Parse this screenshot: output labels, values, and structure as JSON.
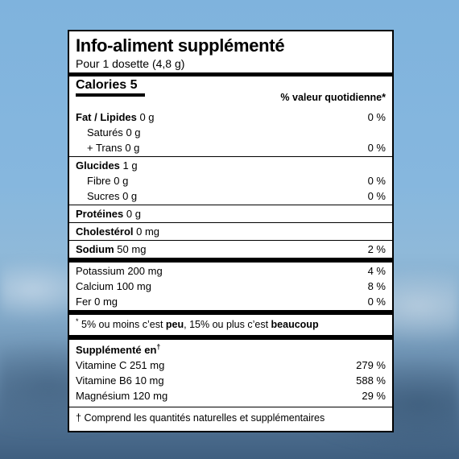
{
  "label": {
    "title": "Info-aliment supplémenté",
    "serving": "Pour 1 dosette (4,8 g)",
    "calories_label": "Calories",
    "calories_value": "5",
    "dv_header": "% valeur quotidienne*",
    "nutrients": {
      "fat": {
        "label": "Fat / Lipides",
        "amount": "0 g",
        "dv": "0 %"
      },
      "saturated": {
        "label": "Saturés",
        "amount": "0 g"
      },
      "trans": {
        "label": "+ Trans",
        "amount": "0 g",
        "dv": "0 %"
      },
      "carbs": {
        "label": "Glucides",
        "amount": "1 g"
      },
      "fibre": {
        "label": "Fibre",
        "amount": "0 g",
        "dv": "0 %"
      },
      "sugars": {
        "label": "Sucres",
        "amount": "0 g",
        "dv": "0 %"
      },
      "protein": {
        "label": "Protéines",
        "amount": "0 g"
      },
      "cholesterol": {
        "label": "Cholestérol",
        "amount": "0 mg"
      },
      "sodium": {
        "label": "Sodium",
        "amount": "50 mg",
        "dv": "2 %"
      },
      "potassium": {
        "label": "Potassium",
        "amount": "200 mg",
        "dv": "4 %"
      },
      "calcium": {
        "label": "Calcium",
        "amount": "100 mg",
        "dv": "8 %"
      },
      "iron": {
        "label": "Fer",
        "amount": "0 mg",
        "dv": "0 %"
      }
    },
    "footnote": {
      "asterisk": "*",
      "part1": " 5% ou moins c’est ",
      "low": "peu",
      "part2": ", 15% ou plus c’est ",
      "high": "beaucoup"
    },
    "supplemented": {
      "title": "Supplémenté en",
      "dagger": "†",
      "items": [
        {
          "label": "Vitamine C",
          "amount": "251 mg",
          "dv": "279 %"
        },
        {
          "label": "Vitamine B6",
          "amount": "10 mg",
          "dv": "588 %"
        },
        {
          "label": "Magnésium",
          "amount": "120 mg",
          "dv": "29 %"
        }
      ]
    },
    "bottom_note": {
      "dagger": "†",
      "text": "Comprend les quantités naturelles et supplémentaires"
    }
  }
}
